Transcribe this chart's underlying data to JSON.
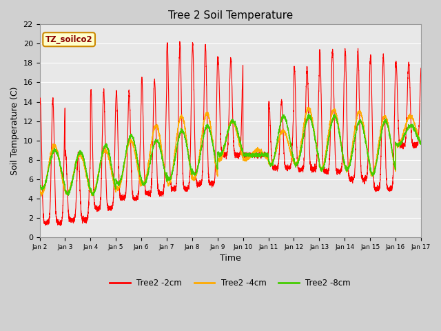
{
  "title": "Tree 2 Soil Temperature",
  "xlabel": "Time",
  "ylabel": "Soil Temperature (C)",
  "ylim": [
    0,
    22
  ],
  "yticks": [
    0,
    2,
    4,
    6,
    8,
    10,
    12,
    14,
    16,
    18,
    20,
    22
  ],
  "annotation_text": "TZ_soilco2",
  "annotation_color": "#8b0000",
  "annotation_bg": "#ffffcc",
  "annotation_border": "#cc8800",
  "fig_bg_color": "#d0d0d0",
  "plot_bg_color": "#e8e8e8",
  "grid_color": "#ffffff",
  "colors": {
    "2cm": "#ff0000",
    "4cm": "#ffaa00",
    "8cm": "#44cc00"
  },
  "legend_labels": [
    "Tree2 -2cm",
    "Tree2 -4cm",
    "Tree2 -8cm"
  ],
  "x_tick_labels": [
    "Jan 2",
    "Jan 3",
    "Jan 4",
    "Jan 5",
    "Jan 6",
    "Jan 7",
    "Jan 8",
    "Jan 9",
    "Jan 10",
    "Jan 11",
    "Jan 12",
    "Jan 13",
    "Jan 14",
    "Jan 15",
    "Jan 16",
    "Jan 17"
  ],
  "n_days": 15
}
